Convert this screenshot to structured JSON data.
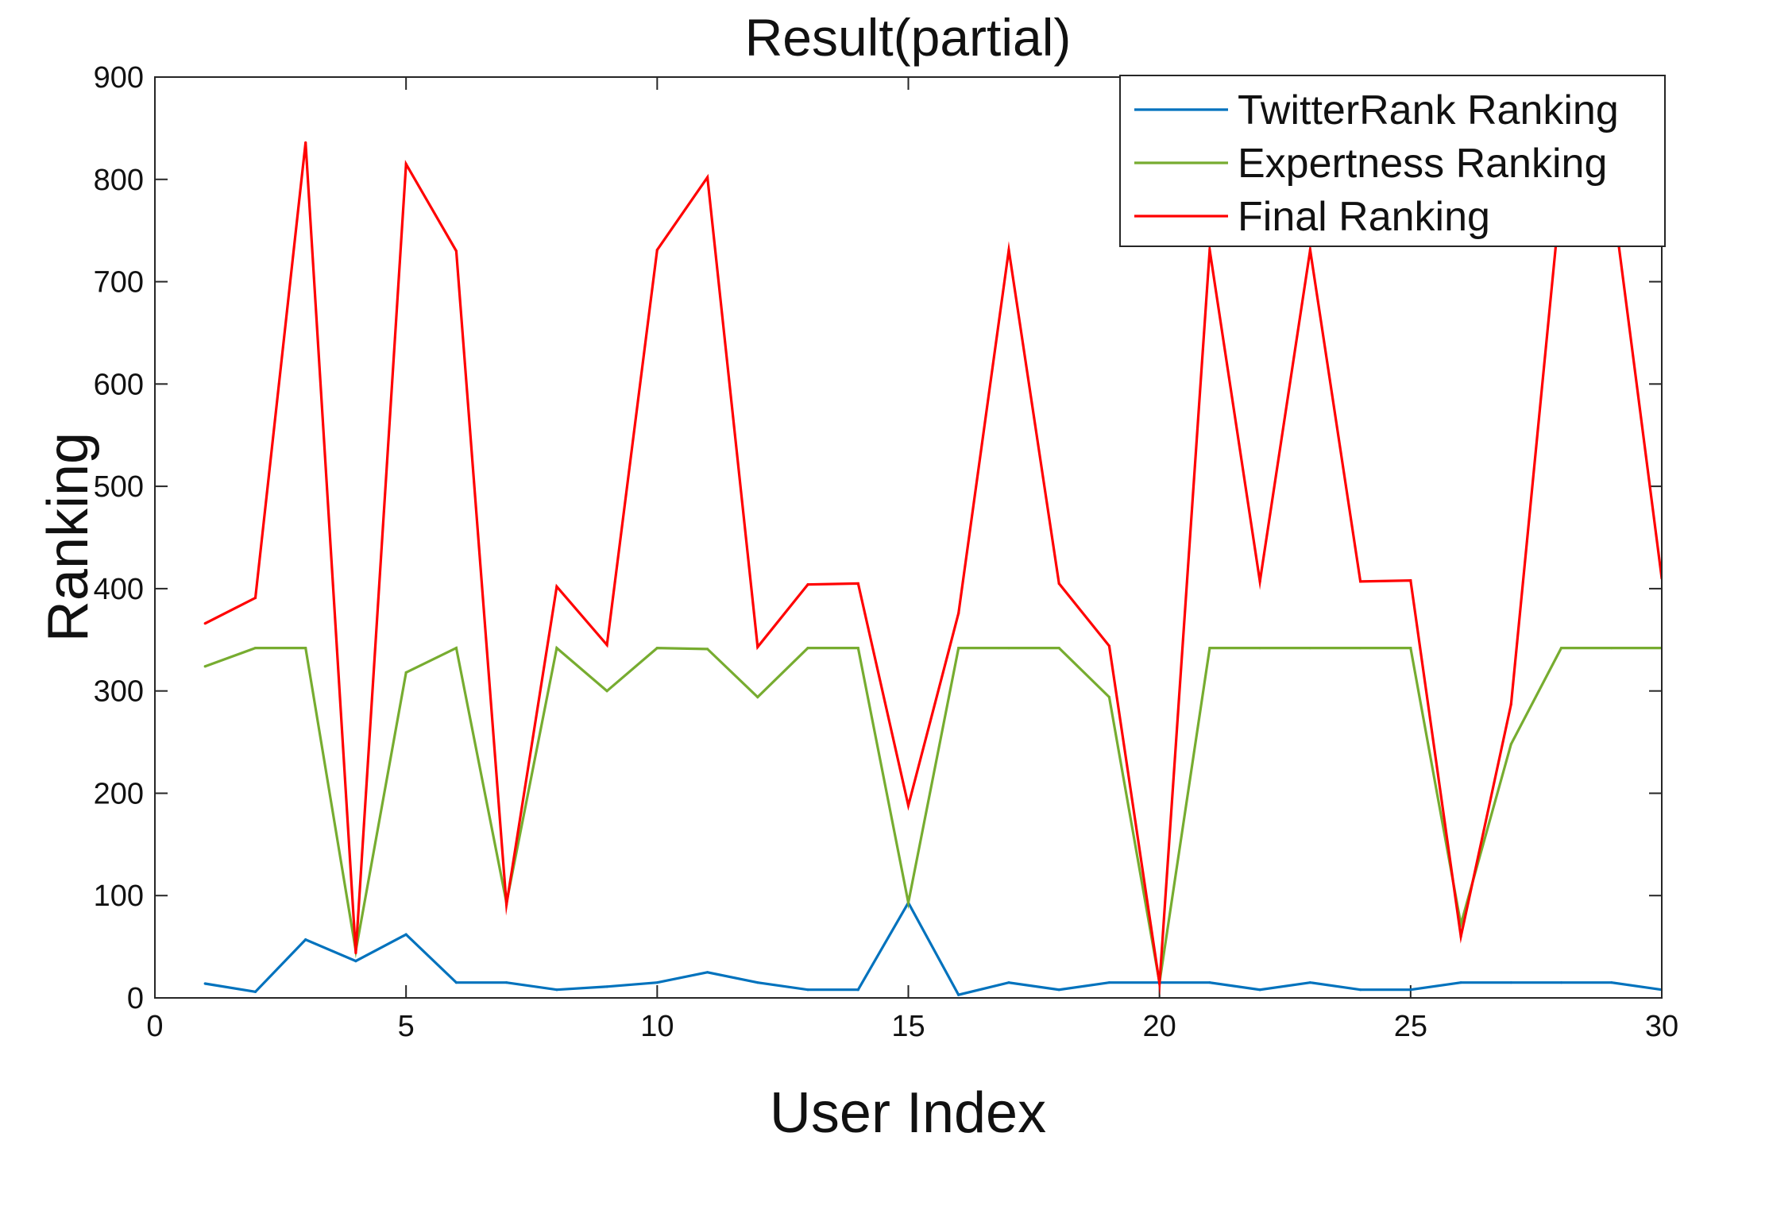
{
  "chart_data": {
    "type": "line",
    "title": "Result(partial)",
    "xlabel": "User Index",
    "ylabel": "Ranking",
    "xlim": [
      0,
      30
    ],
    "ylim": [
      0,
      900
    ],
    "xticks": [
      0,
      5,
      10,
      15,
      20,
      25,
      30
    ],
    "yticks": [
      0,
      100,
      200,
      300,
      400,
      500,
      600,
      700,
      800,
      900
    ],
    "grid": false,
    "legend_position": "top-right",
    "x": [
      1,
      2,
      3,
      4,
      5,
      6,
      7,
      8,
      9,
      10,
      11,
      12,
      13,
      14,
      15,
      16,
      17,
      18,
      19,
      20,
      21,
      22,
      23,
      24,
      25,
      26,
      27,
      28,
      29,
      30
    ],
    "series": [
      {
        "name": "TwitterRank Ranking",
        "color": "#0072BD",
        "values": [
          14,
          6,
          57,
          36,
          62,
          15,
          15,
          8,
          11,
          15,
          25,
          15,
          8,
          8,
          93,
          3,
          15,
          8,
          15,
          15,
          15,
          8,
          15,
          8,
          8,
          15,
          15,
          15,
          15,
          8
        ]
      },
      {
        "name": "Expertness Ranking",
        "color": "#77AC30",
        "values": [
          324,
          342,
          342,
          46,
          318,
          342,
          93,
          342,
          300,
          342,
          341,
          294,
          342,
          342,
          93,
          342,
          342,
          342,
          294,
          15,
          342,
          342,
          342,
          342,
          342,
          72,
          248,
          342,
          342,
          342
        ]
      },
      {
        "name": "Final Ranking",
        "color": "#FF0000",
        "values": [
          366,
          391,
          836,
          44,
          815,
          730,
          91,
          402,
          345,
          731,
          802,
          343,
          404,
          405,
          188,
          376,
          731,
          405,
          344,
          14,
          731,
          407,
          731,
          407,
          408,
          60,
          287,
          790,
          790,
          410
        ]
      }
    ]
  }
}
